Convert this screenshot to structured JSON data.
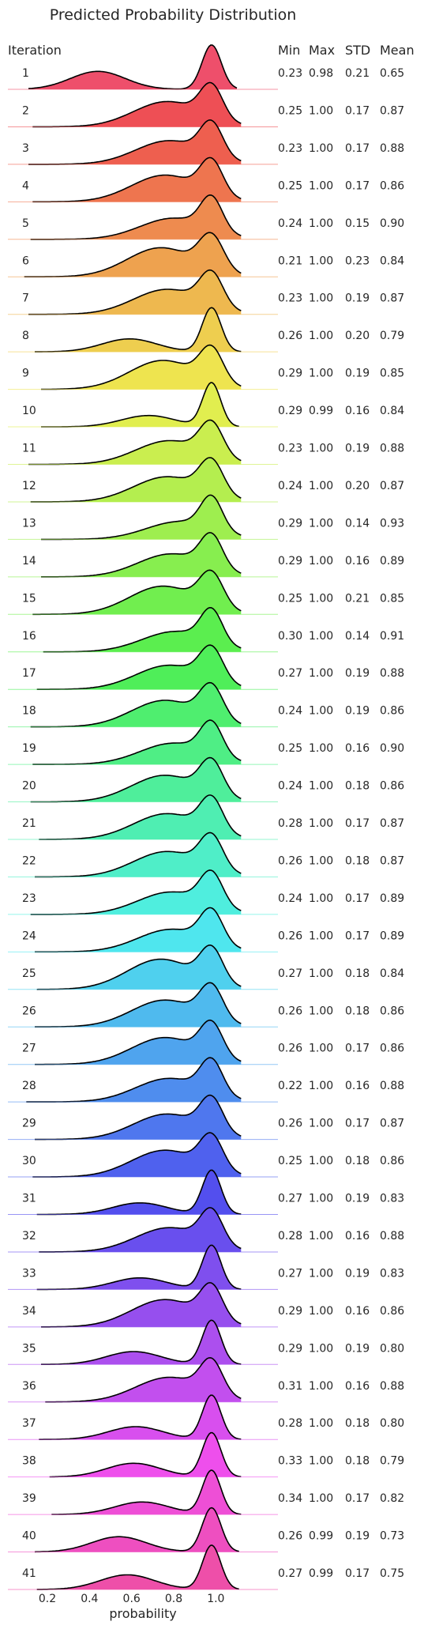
{
  "chart_data": {
    "type": "ridgeline",
    "title": "Predicted Probability Distribution",
    "xlabel": "probability",
    "ylabel": "Iteration",
    "xlim": [
      0.05,
      1.25
    ],
    "xticks": [
      0.2,
      0.4,
      0.6,
      0.8,
      1.0
    ],
    "xtick_labels": [
      "0.2",
      "0.4",
      "0.6",
      "0.8",
      "1.0"
    ],
    "stat_headers": [
      "Min",
      "Max",
      "STD",
      "Mean"
    ],
    "grid": false,
    "legend": "none",
    "palette_start": "#f77189",
    "palette_end": "#f564b7",
    "iterations": [
      {
        "label": "1",
        "min": "0.23",
        "max": "0.98",
        "std": "0.21",
        "mean": "0.65"
      },
      {
        "label": "2",
        "min": "0.25",
        "max": "1.00",
        "std": "0.17",
        "mean": "0.87"
      },
      {
        "label": "3",
        "min": "0.23",
        "max": "1.00",
        "std": "0.17",
        "mean": "0.88"
      },
      {
        "label": "4",
        "min": "0.25",
        "max": "1.00",
        "std": "0.17",
        "mean": "0.86"
      },
      {
        "label": "5",
        "min": "0.24",
        "max": "1.00",
        "std": "0.15",
        "mean": "0.90"
      },
      {
        "label": "6",
        "min": "0.21",
        "max": "1.00",
        "std": "0.23",
        "mean": "0.84"
      },
      {
        "label": "7",
        "min": "0.23",
        "max": "1.00",
        "std": "0.19",
        "mean": "0.87"
      },
      {
        "label": "8",
        "min": "0.26",
        "max": "1.00",
        "std": "0.20",
        "mean": "0.79"
      },
      {
        "label": "9",
        "min": "0.29",
        "max": "1.00",
        "std": "0.19",
        "mean": "0.85"
      },
      {
        "label": "10",
        "min": "0.29",
        "max": "0.99",
        "std": "0.16",
        "mean": "0.84"
      },
      {
        "label": "11",
        "min": "0.23",
        "max": "1.00",
        "std": "0.19",
        "mean": "0.88"
      },
      {
        "label": "12",
        "min": "0.24",
        "max": "1.00",
        "std": "0.20",
        "mean": "0.87"
      },
      {
        "label": "13",
        "min": "0.29",
        "max": "1.00",
        "std": "0.14",
        "mean": "0.93"
      },
      {
        "label": "14",
        "min": "0.29",
        "max": "1.00",
        "std": "0.16",
        "mean": "0.89"
      },
      {
        "label": "15",
        "min": "0.25",
        "max": "1.00",
        "std": "0.21",
        "mean": "0.85"
      },
      {
        "label": "16",
        "min": "0.30",
        "max": "1.00",
        "std": "0.14",
        "mean": "0.91"
      },
      {
        "label": "17",
        "min": "0.27",
        "max": "1.00",
        "std": "0.19",
        "mean": "0.88"
      },
      {
        "label": "18",
        "min": "0.24",
        "max": "1.00",
        "std": "0.19",
        "mean": "0.86"
      },
      {
        "label": "19",
        "min": "0.25",
        "max": "1.00",
        "std": "0.16",
        "mean": "0.90"
      },
      {
        "label": "20",
        "min": "0.24",
        "max": "1.00",
        "std": "0.18",
        "mean": "0.86"
      },
      {
        "label": "21",
        "min": "0.28",
        "max": "1.00",
        "std": "0.17",
        "mean": "0.87"
      },
      {
        "label": "22",
        "min": "0.26",
        "max": "1.00",
        "std": "0.18",
        "mean": "0.87"
      },
      {
        "label": "23",
        "min": "0.24",
        "max": "1.00",
        "std": "0.17",
        "mean": "0.89"
      },
      {
        "label": "24",
        "min": "0.26",
        "max": "1.00",
        "std": "0.17",
        "mean": "0.89"
      },
      {
        "label": "25",
        "min": "0.27",
        "max": "1.00",
        "std": "0.18",
        "mean": "0.84"
      },
      {
        "label": "26",
        "min": "0.26",
        "max": "1.00",
        "std": "0.18",
        "mean": "0.86"
      },
      {
        "label": "27",
        "min": "0.26",
        "max": "1.00",
        "std": "0.17",
        "mean": "0.86"
      },
      {
        "label": "28",
        "min": "0.22",
        "max": "1.00",
        "std": "0.16",
        "mean": "0.88"
      },
      {
        "label": "29",
        "min": "0.26",
        "max": "1.00",
        "std": "0.17",
        "mean": "0.87"
      },
      {
        "label": "30",
        "min": "0.25",
        "max": "1.00",
        "std": "0.18",
        "mean": "0.86"
      },
      {
        "label": "31",
        "min": "0.27",
        "max": "1.00",
        "std": "0.19",
        "mean": "0.83"
      },
      {
        "label": "32",
        "min": "0.28",
        "max": "1.00",
        "std": "0.16",
        "mean": "0.88"
      },
      {
        "label": "33",
        "min": "0.27",
        "max": "1.00",
        "std": "0.19",
        "mean": "0.83"
      },
      {
        "label": "34",
        "min": "0.29",
        "max": "1.00",
        "std": "0.16",
        "mean": "0.86"
      },
      {
        "label": "35",
        "min": "0.29",
        "max": "1.00",
        "std": "0.19",
        "mean": "0.80"
      },
      {
        "label": "36",
        "min": "0.31",
        "max": "1.00",
        "std": "0.16",
        "mean": "0.88"
      },
      {
        "label": "37",
        "min": "0.28",
        "max": "1.00",
        "std": "0.18",
        "mean": "0.80"
      },
      {
        "label": "38",
        "min": "0.33",
        "max": "1.00",
        "std": "0.18",
        "mean": "0.79"
      },
      {
        "label": "39",
        "min": "0.34",
        "max": "1.00",
        "std": "0.17",
        "mean": "0.82"
      },
      {
        "label": "40",
        "min": "0.26",
        "max": "0.99",
        "std": "0.19",
        "mean": "0.73"
      },
      {
        "label": "41",
        "min": "0.27",
        "max": "0.99",
        "std": "0.17",
        "mean": "0.75"
      }
    ]
  }
}
